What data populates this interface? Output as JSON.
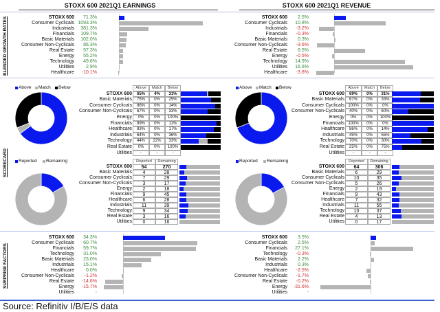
{
  "colors": {
    "positive": "#3a8a3a",
    "negative": "#d03030",
    "accent": "#0a1aef",
    "bar": "#b4b4b4",
    "below": "#000000"
  },
  "earnings_title": "STOXX 600 2021Q1 EARNINGS",
  "revenue_title": "STOXX 600 2021Q1 REVENUE",
  "section_labels": {
    "growth": "BLENDED GROWTH RATES",
    "scorecard": "SCORECARD",
    "surprise": "SURPRISE FACTORS"
  },
  "legend": {
    "above": "Above",
    "match": "Match",
    "below": "Below",
    "reported": "Reported",
    "remaining": "Remaining"
  },
  "score_headers": [
    "Above",
    "Match",
    "Below"
  ],
  "report_headers": [
    "Reported",
    "Remaining"
  ],
  "growth": {
    "earnings": [
      {
        "sector": "STOXX 600",
        "value": "71.3%",
        "num": 71.3
      },
      {
        "sector": "Consumer Cyclicals",
        "value": "1093.3%",
        "num": 1093.3
      },
      {
        "sector": "Industrials",
        "value": "381.3%",
        "num": 381.3
      },
      {
        "sector": "Financials",
        "value": "109.7%",
        "num": 109.7
      },
      {
        "sector": "Basic Materials",
        "value": "102.0%",
        "num": 102.0
      },
      {
        "sector": "Consumer Non-Cyclicals",
        "value": "86.3%",
        "num": 86.3
      },
      {
        "sector": "Real Estate",
        "value": "57.3%",
        "num": 57.3
      },
      {
        "sector": "Energy",
        "value": "55.2%",
        "num": 55.2
      },
      {
        "sector": "Technology",
        "value": "49.6%",
        "num": 49.6
      },
      {
        "sector": "Utilities",
        "value": "2.9%",
        "num": 2.9
      },
      {
        "sector": "Healthcare",
        "value": "-10.1%",
        "num": -10.1
      }
    ],
    "revenue": [
      {
        "sector": "STOXX 600",
        "value": "2.5%",
        "num": 2.5
      },
      {
        "sector": "Consumer Cyclicals",
        "value": "10.8%",
        "num": 10.8
      },
      {
        "sector": "Industrials",
        "value": "-3.2%",
        "num": -3.2
      },
      {
        "sector": "Financials",
        "value": "-0.3%",
        "num": -0.3
      },
      {
        "sector": "Basic Materials",
        "value": "0.3%",
        "num": 0.3
      },
      {
        "sector": "Consumer Non-Cyclicals",
        "value": "-3.6%",
        "num": -3.6
      },
      {
        "sector": "Real Estate",
        "value": "6.5%",
        "num": 6.5
      },
      {
        "sector": "Energy",
        "value": "-0.5%",
        "num": -0.5
      },
      {
        "sector": "Technology",
        "value": "14.9%",
        "num": 14.9
      },
      {
        "sector": "Utilities",
        "value": "16.6%",
        "num": 16.6
      },
      {
        "sector": "Healthcare",
        "value": "-3.8%",
        "num": -3.8
      }
    ]
  },
  "scorecard": {
    "earnings": [
      {
        "sector": "STOXX 600",
        "above": "65%",
        "match": "4%",
        "below": "31%"
      },
      {
        "sector": "Basic Materials",
        "above": "75%",
        "match": "0%",
        "below": "25%"
      },
      {
        "sector": "Consumer Cyclicals",
        "above": "86%",
        "match": "0%",
        "below": "14%"
      },
      {
        "sector": "Consumer Non-Cyclicals",
        "above": "67%",
        "match": "0%",
        "below": "33%"
      },
      {
        "sector": "Energy",
        "above": "0%",
        "match": "0%",
        "below": "100%"
      },
      {
        "sector": "Financials",
        "above": "89%",
        "match": "0%",
        "below": "11%"
      },
      {
        "sector": "Healthcare",
        "above": "83%",
        "match": "0%",
        "below": "17%"
      },
      {
        "sector": "Industrials",
        "above": "64%",
        "match": "0%",
        "below": "36%"
      },
      {
        "sector": "Technology",
        "above": "44%",
        "match": "22%",
        "below": "33%"
      },
      {
        "sector": "Real Estate",
        "above": "0%",
        "match": "0%",
        "below": "100%"
      },
      {
        "sector": "Utilities",
        "above": "-",
        "match": "-",
        "below": "-"
      }
    ],
    "revenue": [
      {
        "sector": "STOXX 600",
        "above": "69%",
        "match": "0%",
        "below": "31%"
      },
      {
        "sector": "Basic Materials",
        "above": "67%",
        "match": "0%",
        "below": "33%"
      },
      {
        "sector": "Consumer Cyclicals",
        "above": "100%",
        "match": "0%",
        "below": "0%"
      },
      {
        "sector": "Consumer Non-Cyclicals",
        "above": "40%",
        "match": "0%",
        "below": "60%"
      },
      {
        "sector": "Energy",
        "above": "0%",
        "match": "0%",
        "below": "100%"
      },
      {
        "sector": "Financials",
        "above": "100%",
        "match": "0%",
        "below": "0%"
      },
      {
        "sector": "Healthcare",
        "above": "86%",
        "match": "0%",
        "below": "14%"
      },
      {
        "sector": "Industrials",
        "above": "45%",
        "match": "0%",
        "below": "55%"
      },
      {
        "sector": "Technology",
        "above": "70%",
        "match": "0%",
        "below": "30%"
      },
      {
        "sector": "Real Estate",
        "above": "25%",
        "match": "0%",
        "below": "75%"
      },
      {
        "sector": "Utilities",
        "above": "-",
        "match": "-",
        "below": "-"
      }
    ]
  },
  "reported": {
    "earnings": [
      {
        "sector": "STOXX 600",
        "reported": "54",
        "remaining": "270"
      },
      {
        "sector": "Basic Materials",
        "reported": "4",
        "remaining": "28"
      },
      {
        "sector": "Consumer Cyclicals",
        "reported": "7",
        "remaining": "29"
      },
      {
        "sector": "Consumer Non-Cyclicals",
        "reported": "3",
        "remaining": "17"
      },
      {
        "sector": "Energy",
        "reported": "2",
        "remaining": "18"
      },
      {
        "sector": "Financials",
        "reported": "9",
        "remaining": "45"
      },
      {
        "sector": "Healthcare",
        "reported": "6",
        "remaining": "28"
      },
      {
        "sector": "Industrials",
        "reported": "11",
        "remaining": "39"
      },
      {
        "sector": "Technology",
        "reported": "9",
        "remaining": "34"
      },
      {
        "sector": "Real Estate",
        "reported": "3",
        "remaining": "16"
      },
      {
        "sector": "Utilities",
        "reported": "0",
        "remaining": "16"
      }
    ],
    "revenue": [
      {
        "sector": "STOXX 600",
        "reported": "64",
        "remaining": "306"
      },
      {
        "sector": "Basic Materials",
        "reported": "6",
        "remaining": "29"
      },
      {
        "sector": "Consumer Cyclicals",
        "reported": "10",
        "remaining": "35"
      },
      {
        "sector": "Consumer Non-Cyclicals",
        "reported": "5",
        "remaining": "26"
      },
      {
        "sector": "Energy",
        "reported": "2",
        "remaining": "19"
      },
      {
        "sector": "Financials",
        "reported": "9",
        "remaining": "43"
      },
      {
        "sector": "Healthcare",
        "reported": "7",
        "remaining": "32"
      },
      {
        "sector": "Industrials",
        "reported": "11",
        "remaining": "55"
      },
      {
        "sector": "Technology",
        "reported": "10",
        "remaining": "37"
      },
      {
        "sector": "Real Estate",
        "reported": "4",
        "remaining": "13"
      },
      {
        "sector": "Utilities",
        "reported": "0",
        "remaining": "17"
      }
    ]
  },
  "surprise": {
    "earnings": [
      {
        "sector": "STOXX 600",
        "value": "34.3%",
        "num": 34.3
      },
      {
        "sector": "Consumer Cyclicals",
        "value": "60.7%",
        "num": 60.7
      },
      {
        "sector": "Financials",
        "value": "59.7%",
        "num": 59.7
      },
      {
        "sector": "Technology",
        "value": "31.0%",
        "num": 31.0
      },
      {
        "sector": "Basic Materials",
        "value": "23.0%",
        "num": 23.0
      },
      {
        "sector": "Industrials",
        "value": "15.1%",
        "num": 15.1
      },
      {
        "sector": "Healthcare",
        "value": "0.0%",
        "num": 0.0
      },
      {
        "sector": "Consumer Non-Cyclicals",
        "value": "-1.2%",
        "num": -1.2
      },
      {
        "sector": "Real Estate",
        "value": "-14.6%",
        "num": -14.6
      },
      {
        "sector": "Energy",
        "value": "-15.7%",
        "num": -15.7
      },
      {
        "sector": "Utilities",
        "value": "-",
        "num": null
      }
    ],
    "revenue": [
      {
        "sector": "STOXX 600",
        "value": "3.5%",
        "num": 3.5
      },
      {
        "sector": "Consumer Cyclicals",
        "value": "2.5%",
        "num": 2.5
      },
      {
        "sector": "Financials",
        "value": "27.1%",
        "num": 27.1
      },
      {
        "sector": "Technology",
        "value": "-0.3%",
        "num": -0.3
      },
      {
        "sector": "Basic Materials",
        "value": "2.2%",
        "num": 2.2
      },
      {
        "sector": "Industrials",
        "value": "0.3%",
        "num": 0.3
      },
      {
        "sector": "Healthcare",
        "value": "-2.5%",
        "num": -2.5
      },
      {
        "sector": "Consumer Non-Cyclicals",
        "value": "-1.7%",
        "num": -1.7
      },
      {
        "sector": "Real Estate",
        "value": "-0.2%",
        "num": -0.2
      },
      {
        "sector": "Energy",
        "value": "-31.6%",
        "num": -31.6
      },
      {
        "sector": "Utilities",
        "value": "-",
        "num": null
      }
    ]
  },
  "source": "Source: Refinitiv I/B/E/S data"
}
